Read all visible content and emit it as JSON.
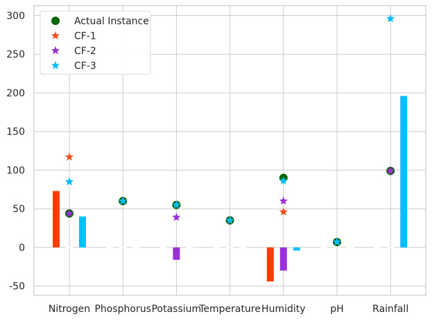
{
  "chart_data": {
    "type": "bar",
    "categories": [
      "Nitrogen",
      "Phosphorus",
      "Potassium",
      "Temperature",
      "Humidity",
      "pH",
      "Rainfall"
    ],
    "ylim": [
      -62,
      313
    ],
    "yticks": [
      -50,
      0,
      50,
      100,
      150,
      200,
      250,
      300
    ],
    "grid": true,
    "legend_placement": "top-left",
    "bar_series": [
      {
        "ref": "CF-1",
        "color": "#ff3d00",
        "values": [
          73,
          0,
          0,
          0,
          -44,
          0,
          0
        ]
      },
      {
        "ref": "CF-2",
        "color": "#9b30d9",
        "values": [
          0,
          0,
          -16,
          0,
          -30,
          0,
          0
        ]
      },
      {
        "ref": "CF-3",
        "color": "#00bfff",
        "values": [
          40,
          0,
          0,
          0,
          -4,
          0,
          196
        ]
      }
    ],
    "markers": [
      {
        "name": "Actual Instance",
        "marker": "circle",
        "color": "#006400",
        "values": [
          44,
          60,
          55,
          35,
          90,
          7,
          99
        ]
      },
      {
        "name": "CF-1",
        "marker": "star",
        "color": "#f4511e",
        "values": [
          117,
          60,
          55,
          35,
          46,
          7,
          99
        ]
      },
      {
        "name": "CF-2",
        "marker": "star",
        "color": "#9b30d9",
        "values": [
          44,
          60,
          39,
          35,
          60,
          7,
          99
        ]
      },
      {
        "name": "CF-3",
        "marker": "star",
        "color": "#00bfff",
        "values": [
          85,
          60,
          55,
          35,
          86,
          7,
          296
        ]
      }
    ]
  }
}
